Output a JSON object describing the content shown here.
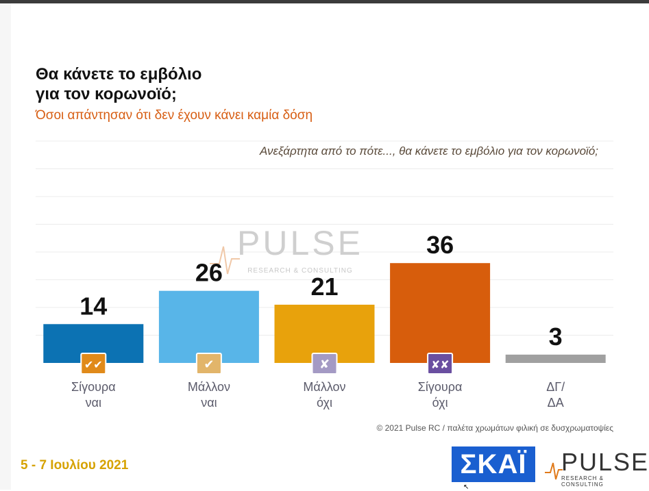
{
  "header": {
    "title": "Θα κάνετε το εμβόλιο\nγια τον κορωνοϊό;",
    "subtitle": "Όσοι απάντησαν ότι δεν έχουν κάνει καμία δόση",
    "question": "Ανεξάρτητα από το πότε..., θα κάνετε το εμβόλιο για τον κορωνοϊό;"
  },
  "watermark": {
    "brand": "PULSE",
    "tagline": "RESEARCH & CONSULTING"
  },
  "chart_data": {
    "type": "bar",
    "title": "Θα κάνετε το εμβόλιο για τον κορωνοϊό;",
    "categories": [
      {
        "line1": "Σίγουρα",
        "line2": "ναι",
        "icon": "double-check-icon",
        "icon_glyph": "✔✔",
        "icon_color": "#e08a1a"
      },
      {
        "line1": "Μάλλον",
        "line2": "ναι",
        "icon": "check-icon",
        "icon_glyph": "✔",
        "icon_color": "#e2b56a"
      },
      {
        "line1": "Μάλλον",
        "line2": "όχι",
        "icon": "cross-icon",
        "icon_glyph": "✘",
        "icon_color": "#a49ac4"
      },
      {
        "line1": "Σίγουρα",
        "line2": "όχι",
        "icon": "double-cross-icon",
        "icon_glyph": "✘✘",
        "icon_color": "#6a4fa0"
      },
      {
        "line1": "ΔΓ/",
        "line2": "ΔΑ",
        "icon": "",
        "icon_glyph": "",
        "icon_color": ""
      }
    ],
    "values": [
      14,
      26,
      21,
      36,
      3
    ],
    "value_labels": [
      "14",
      "26",
      "21",
      "36",
      "3"
    ],
    "colors": [
      "#0c72b3",
      "#58b5e8",
      "#e8a20c",
      "#d75d0c",
      "#a0a0a0"
    ],
    "ylim": [
      0,
      80
    ],
    "grid": true
  },
  "footer": {
    "copyright": "© 2021 Pulse RC  /  παλέτα χρωμάτων φιλική σε δυσχρωματοψίες",
    "date": "5 - 7  Ιουλίου  2021",
    "skai_logo": "ΣΚΑΪ",
    "pulse_logo": "PULSE",
    "pulse_tagline": "RESEARCH & CONSULTING"
  }
}
